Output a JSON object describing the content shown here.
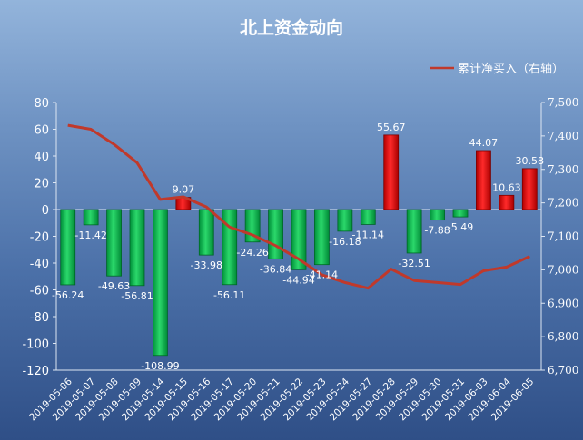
{
  "chart_data": {
    "type": "bar",
    "title": "北上资金动向",
    "categories": [
      "2019-05-06",
      "2019-05-07",
      "2019-05-08",
      "2019-05-09",
      "2019-05-14",
      "2019-05-15",
      "2019-05-16",
      "2019-05-17",
      "2019-05-20",
      "2019-05-21",
      "2019-05-22",
      "2019-05-23",
      "2019-05-24",
      "2019-05-27",
      "2019-05-28",
      "2019-05-29",
      "2019-05-30",
      "2019-05-31",
      "2019-06-03",
      "2019-06-04",
      "2019-06-05"
    ],
    "values": [
      -56.24,
      -11.42,
      -49.63,
      -56.81,
      -108.99,
      9.07,
      -33.98,
      -56.11,
      -24.26,
      -36.84,
      -44.94,
      -41.14,
      -16.18,
      -11.14,
      55.67,
      -32.51,
      -7.88,
      -5.49,
      44.07,
      10.63,
      30.58
    ],
    "data_labels": [
      "-56.24",
      "-11.42",
      "-49.63",
      "-56.81",
      "-108.99",
      "9.07",
      "-33.98",
      "-56.11",
      "-24.26",
      "-36.84",
      "-44.94",
      "-41.14",
      "-16.18",
      "-11.14",
      "55.67",
      "-32.51",
      "-7.88",
      "-5.49",
      "44.07",
      "10.63",
      "30.58"
    ],
    "ylim": [
      -120,
      80
    ],
    "yticks": [
      "80",
      "60",
      "40",
      "20",
      "0",
      "-20",
      "-40",
      "-60",
      "-80",
      "-100",
      "-120"
    ],
    "series": [
      {
        "name": "累计净买入（右轴）",
        "type": "line",
        "axis": "right",
        "values": [
          7432,
          7420,
          7375,
          7320,
          7210,
          7218,
          7188,
          7128,
          7104,
          7072,
          7032,
          6985,
          6962,
          6945,
          7002,
          6968,
          6962,
          6956,
          6997,
          7008,
          7040
        ]
      }
    ],
    "y2lim": [
      6700,
      7500
    ],
    "y2ticks": [
      "7,500",
      "7,400",
      "7,300",
      "7,200",
      "7,100",
      "7,000",
      "6,900",
      "6,800",
      "6,700"
    ],
    "legend_position": "top-right",
    "grid": false,
    "colors": {
      "positive": "#ff0000",
      "negative": "#00b050",
      "line": "#c0392b"
    }
  }
}
